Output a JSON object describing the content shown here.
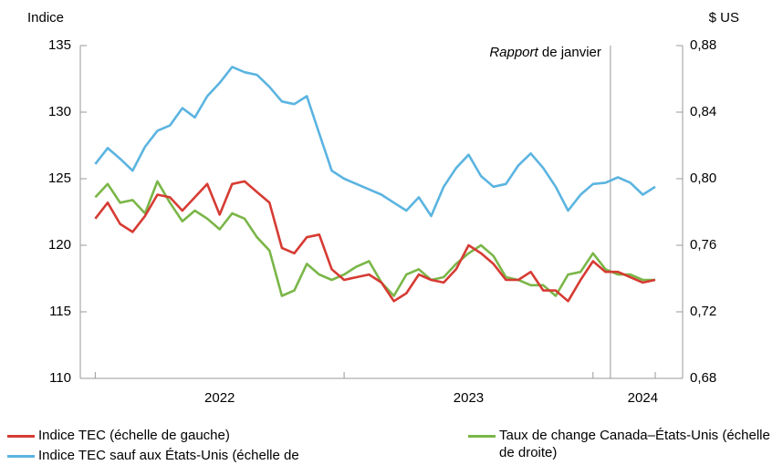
{
  "chart_data": {
    "type": "line",
    "y_label": "Indice",
    "y2_label": "$ US",
    "annotation": {
      "x": 2024.07,
      "italic": "Rapport",
      "text": " de janvier"
    },
    "x": [
      2022.0,
      2022.05,
      2022.1,
      2022.15,
      2022.2,
      2022.25,
      2022.3,
      2022.35,
      2022.4,
      2022.45,
      2022.5,
      2022.55,
      2022.6,
      2022.65,
      2022.7,
      2022.75,
      2022.8,
      2022.85,
      2022.9,
      2022.95,
      2023.0,
      2023.05,
      2023.1,
      2023.15,
      2023.2,
      2023.25,
      2023.3,
      2023.35,
      2023.4,
      2023.45,
      2023.5,
      2023.55,
      2023.6,
      2023.65,
      2023.7,
      2023.75,
      2023.8,
      2023.85,
      2023.9,
      2023.95,
      2024.0,
      2024.05,
      2024.1,
      2024.15,
      2024.2,
      2024.25
    ],
    "xlim": [
      2021.94,
      2024.36
    ],
    "xticks": [
      {
        "value": 2022.5,
        "label": "2022"
      },
      {
        "value": 2023.5,
        "label": "2023"
      },
      {
        "value": 2024.2,
        "label": "2024"
      }
    ],
    "xtick_marks": [
      2022,
      2023,
      2024,
      2024.25
    ],
    "ylim": [
      110,
      135
    ],
    "yticks": [
      110,
      115,
      120,
      125,
      130,
      135
    ],
    "y2lim": [
      0.68,
      0.88
    ],
    "y2ticks": [
      {
        "value": 0.68,
        "label": "0,68"
      },
      {
        "value": 0.72,
        "label": "0,72"
      },
      {
        "value": 0.76,
        "label": "0,76"
      },
      {
        "value": 0.8,
        "label": "0,80"
      },
      {
        "value": 0.84,
        "label": "0,84"
      },
      {
        "value": 0.88,
        "label": "0,88"
      }
    ],
    "series": [
      {
        "name": "Indice TEC (échelle de gauche)",
        "color": "#d63b33",
        "values": [
          122.0,
          123.2,
          121.6,
          121.0,
          122.2,
          123.8,
          123.6,
          122.6,
          123.6,
          124.6,
          122.3,
          124.6,
          124.8,
          124.0,
          123.2,
          119.8,
          119.4,
          120.6,
          120.8,
          118.2,
          117.4,
          117.6,
          117.8,
          117.2,
          115.8,
          116.4,
          117.8,
          117.4,
          117.2,
          118.2,
          120.0,
          119.4,
          118.6,
          117.4,
          117.4,
          118.0,
          116.6,
          116.6,
          115.8,
          117.4,
          118.8,
          118.0,
          118.0,
          117.6,
          117.2,
          117.4
        ]
      },
      {
        "name": "Indice TEC sauf aux États-Unis (échelle de gauche)",
        "color": "#5bb4e0",
        "values": [
          126.1,
          127.3,
          126.5,
          125.6,
          127.4,
          128.6,
          129.0,
          130.3,
          129.6,
          131.2,
          132.2,
          133.4,
          133.0,
          132.8,
          131.9,
          130.8,
          130.6,
          131.2,
          128.4,
          125.6,
          125.0,
          124.6,
          124.2,
          123.8,
          123.2,
          122.6,
          123.6,
          122.2,
          124.4,
          125.8,
          126.8,
          125.2,
          124.4,
          124.6,
          126.0,
          126.9,
          125.8,
          124.4,
          122.6,
          123.8,
          124.6,
          124.7,
          125.1,
          124.7,
          123.8,
          124.4
        ]
      },
      {
        "name": "Taux de change Canada–États-Unis (échelle de droite)",
        "color": "#7ab648",
        "axis": "y2",
        "values": [
          0.7888,
          0.7968,
          0.7856,
          0.7872,
          0.7792,
          0.7984,
          0.7856,
          0.7744,
          0.7808,
          0.776,
          0.7696,
          0.7792,
          0.776,
          0.7648,
          0.7568,
          0.7296,
          0.7328,
          0.7488,
          0.7424,
          0.7392,
          0.7424,
          0.7472,
          0.7504,
          0.7376,
          0.7296,
          0.7424,
          0.7456,
          0.7392,
          0.7408,
          0.7488,
          0.7552,
          0.76,
          0.7536,
          0.7408,
          0.7392,
          0.736,
          0.736,
          0.7296,
          0.7424,
          0.744,
          0.7552,
          0.7456,
          0.7424,
          0.7424,
          0.7392,
          0.7392
        ]
      }
    ]
  }
}
